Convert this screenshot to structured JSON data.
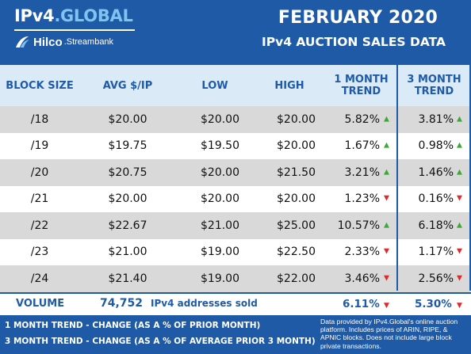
{
  "header": {
    "logo_ipv4": "IPv4",
    "logo_dot": ".",
    "logo_global": "GLOBAL",
    "logo_hilco": "Hilco",
    "logo_streambank": ".Streambank",
    "title_line1": "FEBRUARY 2020",
    "title_line2": "IPv4 AUCTION SALES DATA"
  },
  "table": {
    "columns": [
      "BLOCK SIZE",
      "AVG $/IP",
      "LOW",
      "HIGH",
      "1 MONTH TREND",
      "3 MONTH TREND"
    ],
    "columns_split": {
      "m1_a": "1 MONTH",
      "m1_b": "TREND",
      "m3_a": "3 MONTH",
      "m3_b": "TREND"
    },
    "rows": [
      {
        "block": "/18",
        "avg": "$20.00",
        "low": "$20.00",
        "high": "$20.00",
        "m1": "5.82%",
        "m1_dir": "up",
        "m3": "3.81%",
        "m3_dir": "up"
      },
      {
        "block": "/19",
        "avg": "$19.75",
        "low": "$19.50",
        "high": "$20.00",
        "m1": "1.67%",
        "m1_dir": "up",
        "m3": "0.98%",
        "m3_dir": "up"
      },
      {
        "block": "/20",
        "avg": "$20.75",
        "low": "$20.00",
        "high": "$21.50",
        "m1": "3.21%",
        "m1_dir": "up",
        "m3": "1.46%",
        "m3_dir": "up"
      },
      {
        "block": "/21",
        "avg": "$20.00",
        "low": "$20.00",
        "high": "$20.00",
        "m1": "1.23%",
        "m1_dir": "down",
        "m3": "0.16%",
        "m3_dir": "down"
      },
      {
        "block": "/22",
        "avg": "$22.67",
        "low": "$21.00",
        "high": "$25.00",
        "m1": "10.57%",
        "m1_dir": "up",
        "m3": "6.18%",
        "m3_dir": "up"
      },
      {
        "block": "/23",
        "avg": "$21.00",
        "low": "$19.00",
        "high": "$22.50",
        "m1": "2.33%",
        "m1_dir": "down",
        "m3": "1.17%",
        "m3_dir": "down"
      },
      {
        "block": "/24",
        "avg": "$21.40",
        "low": "$19.00",
        "high": "$22.00",
        "m1": "3.46%",
        "m1_dir": "down",
        "m3": "2.56%",
        "m3_dir": "down"
      }
    ]
  },
  "volume": {
    "label": "VOLUME",
    "number": "74,752",
    "text": "IPv4 addresses sold",
    "m1": "6.11%",
    "m1_dir": "down",
    "m3": "5.30%",
    "m3_dir": "down"
  },
  "footer": {
    "legend1": "1 MONTH TREND - CHANGE (AS A % OF PRIOR MONTH)",
    "legend2": "3 MONTH TREND - CHANGE (AS A % OF AVERAGE PRIOR 3 MONTH)",
    "note": "Data provided by IPv4.Global's online auction platform. Includes prices of ARIN, RIPE, & APNIC blocks. Does not include large block private transactions."
  },
  "colors": {
    "brand_blue": "#1f5aa6",
    "header_band": "#daeaf7",
    "shade_row": "#d9d9d9",
    "up": "#3aaa35",
    "down": "#e0282c"
  },
  "icons": {
    "up": "triangle-up-icon",
    "down": "triangle-down-icon",
    "hilco": "hilco-swoosh-icon"
  }
}
